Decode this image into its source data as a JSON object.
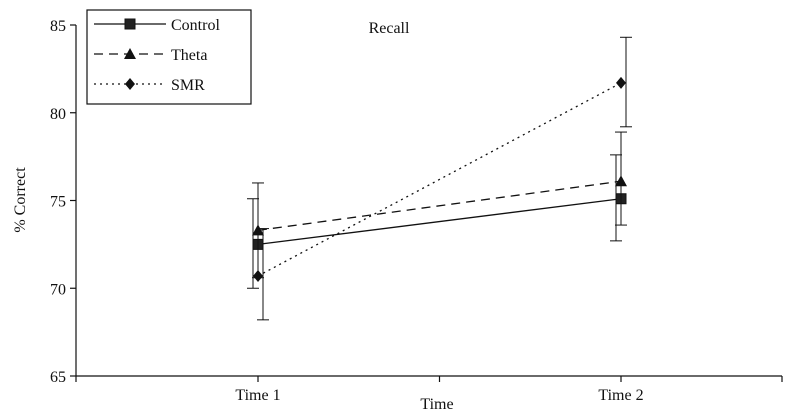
{
  "chart_data": {
    "type": "line",
    "title": "Recall",
    "xlabel": "Time",
    "ylabel": "% Correct",
    "categories": [
      "Time 1",
      "Time 2"
    ],
    "ylim": [
      65,
      85
    ],
    "yticks": [
      65,
      70,
      75,
      80,
      85
    ],
    "grid": false,
    "legend_position": "top-left",
    "series": [
      {
        "name": "Control",
        "values": [
          72.5,
          75.1
        ],
        "error_low": [
          70.0,
          72.7
        ],
        "error_high": [
          75.1,
          77.6
        ],
        "line_style": "solid",
        "marker": "square"
      },
      {
        "name": "Theta",
        "values": [
          73.3,
          76.1
        ],
        "error_low": [
          70.6,
          73.6
        ],
        "error_high": [
          76.0,
          78.9
        ],
        "line_style": "dashed",
        "marker": "triangle"
      },
      {
        "name": "SMR",
        "values": [
          70.7,
          81.7
        ],
        "error_low": [
          68.2,
          79.2
        ],
        "error_high": [
          73.4,
          84.3
        ],
        "line_style": "dotted",
        "marker": "diamond"
      }
    ]
  }
}
